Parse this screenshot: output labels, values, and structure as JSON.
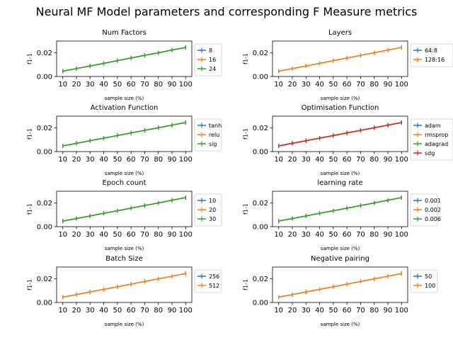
{
  "figure": {
    "title": "Neural MF Model parameters and corresponding F Measure metrics"
  },
  "palette": [
    "#1f77b4",
    "#ff7f0e",
    "#2ca02c",
    "#d62728"
  ],
  "chart_data": [
    {
      "type": "line",
      "title": "Num Factors",
      "x": [
        10,
        20,
        30,
        40,
        50,
        60,
        70,
        80,
        90,
        100
      ],
      "series": [
        {
          "name": "8",
          "values": [
            0.0045,
            0.0067,
            0.0089,
            0.0111,
            0.0134,
            0.0157,
            0.0179,
            0.0201,
            0.0224,
            0.0246
          ]
        },
        {
          "name": "16",
          "values": [
            0.0045,
            0.0067,
            0.0089,
            0.0111,
            0.0134,
            0.0157,
            0.0179,
            0.0201,
            0.0224,
            0.0246
          ]
        },
        {
          "name": "24",
          "values": [
            0.0045,
            0.0067,
            0.0089,
            0.0111,
            0.0134,
            0.0157,
            0.0179,
            0.0201,
            0.0224,
            0.0246
          ]
        }
      ],
      "xlabel": "sample size (%)",
      "ylabel": "f1-1",
      "ylim": [
        0,
        0.03
      ],
      "yticks": [
        "0.00",
        "0.02"
      ],
      "grid": false,
      "legend": "right"
    },
    {
      "type": "line",
      "title": "Layers",
      "x": [
        10,
        20,
        30,
        40,
        50,
        60,
        70,
        80,
        90,
        100
      ],
      "series": [
        {
          "name": "64:8",
          "values": [
            0.0045,
            0.0067,
            0.0089,
            0.0111,
            0.0134,
            0.0157,
            0.0179,
            0.0201,
            0.0224,
            0.0246
          ]
        },
        {
          "name": "128:16",
          "values": [
            0.0045,
            0.0067,
            0.0089,
            0.0111,
            0.0134,
            0.0157,
            0.0179,
            0.0201,
            0.0224,
            0.0246
          ]
        }
      ],
      "xlabel": "sample size (%)",
      "ylabel": "f1-1",
      "ylim": [
        0,
        0.03
      ],
      "yticks": [
        "0.00",
        "0.02"
      ],
      "grid": false,
      "legend": "right"
    },
    {
      "type": "line",
      "title": "Activation Function",
      "x": [
        10,
        20,
        30,
        40,
        50,
        60,
        70,
        80,
        90,
        100
      ],
      "series": [
        {
          "name": "tanh",
          "values": [
            0.0048,
            0.007,
            0.0092,
            0.0114,
            0.0136,
            0.0158,
            0.018,
            0.0202,
            0.0224,
            0.0246
          ]
        },
        {
          "name": "relu",
          "values": [
            0.0048,
            0.007,
            0.0092,
            0.0114,
            0.0136,
            0.0158,
            0.018,
            0.0202,
            0.0224,
            0.0246
          ]
        },
        {
          "name": "sig",
          "values": [
            0.0048,
            0.007,
            0.0092,
            0.0114,
            0.0136,
            0.0158,
            0.018,
            0.0202,
            0.0224,
            0.0246
          ]
        }
      ],
      "xlabel": "sample size (%)",
      "ylabel": "f1-1",
      "ylim": [
        0,
        0.03
      ],
      "yticks": [
        "0.00",
        "0.02"
      ],
      "grid": false,
      "legend": "right"
    },
    {
      "type": "line",
      "title": "Optimisation Function",
      "x": [
        10,
        20,
        30,
        40,
        50,
        60,
        70,
        80,
        90,
        100
      ],
      "series": [
        {
          "name": "adam",
          "values": [
            0.0048,
            0.007,
            0.0092,
            0.0114,
            0.0136,
            0.0158,
            0.018,
            0.0202,
            0.0224,
            0.0246
          ]
        },
        {
          "name": "rmsprop",
          "values": [
            0.0048,
            0.007,
            0.0092,
            0.0114,
            0.0136,
            0.0158,
            0.018,
            0.0202,
            0.0224,
            0.0246
          ]
        },
        {
          "name": "adagrad",
          "values": [
            0.0048,
            0.007,
            0.0092,
            0.0114,
            0.0136,
            0.0158,
            0.018,
            0.0202,
            0.0224,
            0.0246
          ]
        },
        {
          "name": "sdg",
          "values": [
            0.0048,
            0.007,
            0.0092,
            0.0114,
            0.0136,
            0.0158,
            0.018,
            0.0202,
            0.0224,
            0.0246
          ]
        }
      ],
      "xlabel": "sample size (%)",
      "ylabel": "f1-1",
      "ylim": [
        0,
        0.03
      ],
      "yticks": [
        "0.00",
        "0.02"
      ],
      "grid": false,
      "legend": "right"
    },
    {
      "type": "line",
      "title": "Epoch count",
      "x": [
        10,
        20,
        30,
        40,
        50,
        60,
        70,
        80,
        90,
        100
      ],
      "series": [
        {
          "name": "10",
          "values": [
            0.0047,
            0.0069,
            0.0091,
            0.0113,
            0.0135,
            0.0157,
            0.0179,
            0.0201,
            0.0224,
            0.0246
          ]
        },
        {
          "name": "20",
          "values": [
            0.0047,
            0.0069,
            0.0091,
            0.0113,
            0.0135,
            0.0157,
            0.0179,
            0.0201,
            0.0224,
            0.0246
          ]
        },
        {
          "name": "30",
          "values": [
            0.0047,
            0.0069,
            0.0091,
            0.0113,
            0.0135,
            0.0157,
            0.0179,
            0.0201,
            0.0224,
            0.0246
          ]
        }
      ],
      "xlabel": "sample size (%)",
      "ylabel": "f1-1",
      "ylim": [
        0,
        0.03
      ],
      "yticks": [
        "0.00",
        "0.02"
      ],
      "grid": false,
      "legend": "right"
    },
    {
      "type": "line",
      "title": "learning rate",
      "x": [
        10,
        20,
        30,
        40,
        50,
        60,
        70,
        80,
        90,
        100
      ],
      "series": [
        {
          "name": "0.001",
          "values": [
            0.0047,
            0.0069,
            0.0091,
            0.0113,
            0.0135,
            0.0157,
            0.0179,
            0.0201,
            0.0224,
            0.0246
          ]
        },
        {
          "name": "0.002",
          "values": [
            0.0047,
            0.0069,
            0.0091,
            0.0113,
            0.0135,
            0.0157,
            0.0179,
            0.0201,
            0.0224,
            0.0246
          ]
        },
        {
          "name": "0.006",
          "values": [
            0.0047,
            0.0069,
            0.0091,
            0.0113,
            0.0135,
            0.0157,
            0.0179,
            0.0201,
            0.0224,
            0.0246
          ]
        }
      ],
      "xlabel": "sample size (%)",
      "ylabel": "f1-1",
      "ylim": [
        0,
        0.03
      ],
      "yticks": [
        "0.00",
        "0.02"
      ],
      "grid": false,
      "legend": "right"
    },
    {
      "type": "line",
      "title": "Batch Size",
      "x": [
        10,
        20,
        30,
        40,
        50,
        60,
        70,
        80,
        90,
        100
      ],
      "series": [
        {
          "name": "256",
          "values": [
            0.0045,
            0.0067,
            0.0089,
            0.0111,
            0.0133,
            0.0155,
            0.0178,
            0.02,
            0.0222,
            0.0245
          ]
        },
        {
          "name": "512",
          "values": [
            0.0045,
            0.0067,
            0.0089,
            0.0111,
            0.0133,
            0.0155,
            0.0178,
            0.02,
            0.0222,
            0.0245
          ]
        }
      ],
      "xlabel": "sample size (%)",
      "ylabel": "f1-1",
      "ylim": [
        0,
        0.03
      ],
      "yticks": [
        "0.00",
        "0.02"
      ],
      "grid": false,
      "legend": "right"
    },
    {
      "type": "line",
      "title": "Negative pairing",
      "x": [
        10,
        20,
        30,
        40,
        50,
        60,
        70,
        80,
        90,
        100
      ],
      "series": [
        {
          "name": "50",
          "values": [
            0.0045,
            0.0067,
            0.0089,
            0.0111,
            0.0133,
            0.0155,
            0.0178,
            0.02,
            0.0222,
            0.0245
          ]
        },
        {
          "name": "100",
          "values": [
            0.0045,
            0.0067,
            0.0089,
            0.0111,
            0.0133,
            0.0155,
            0.0178,
            0.02,
            0.0222,
            0.0245
          ]
        }
      ],
      "xlabel": "sample size (%)",
      "ylabel": "f1-1",
      "ylim": [
        0,
        0.03
      ],
      "yticks": [
        "0.00",
        "0.02"
      ],
      "grid": false,
      "legend": "right"
    }
  ]
}
